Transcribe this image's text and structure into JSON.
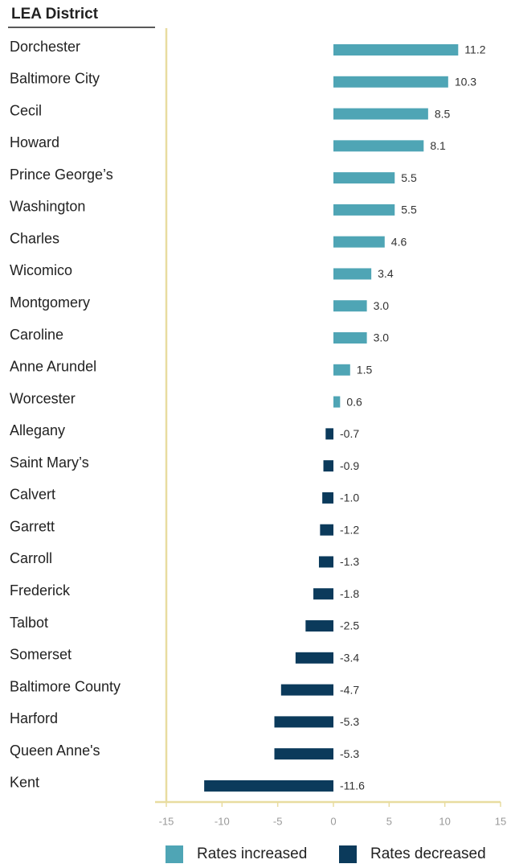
{
  "chart_data": {
    "type": "bar",
    "orientation": "horizontal",
    "title": "LEA District",
    "categories": [
      "Dorchester",
      "Baltimore City",
      "Cecil",
      "Howard",
      "Prince George’s",
      "Washington",
      "Charles",
      "Wicomico",
      "Montgomery",
      "Caroline",
      "Anne Arundel",
      "Worcester",
      "Allegany",
      "Saint Mary’s",
      "Calvert",
      "Garrett",
      "Carroll",
      "Frederick",
      "Talbot",
      "Somerset",
      "Baltimore County",
      "Harford",
      "Queen Anne's",
      "Kent"
    ],
    "values": [
      11.2,
      10.3,
      8.5,
      8.1,
      5.5,
      5.5,
      4.6,
      3.4,
      3,
      3,
      1.5,
      0.6,
      -0.7,
      -0.9,
      -1,
      -1.2,
      -1.3,
      -1.8,
      -2.5,
      -3.4,
      -4.7,
      -5.3,
      -5.3,
      -11.6
    ],
    "value_labels": [
      "11.2",
      "10.3",
      "8.5",
      "8.1",
      "5.5",
      "5.5",
      "4.6",
      "3.4",
      "3.0",
      "3.0",
      "1.5",
      "0.6",
      "-0.7",
      "-0.9",
      "-1.0",
      "-1.2",
      "-1.3",
      "-1.8",
      "-2.5",
      "-3.4",
      "-4.7",
      "-5.3",
      "-5.3",
      "-11.6"
    ],
    "legend": [
      {
        "name": "Rates increased",
        "color": "#4fa5b5"
      },
      {
        "name": "Rates decreased",
        "color": "#0b3a5b"
      }
    ],
    "xlim": [
      -15,
      15
    ],
    "xticks": [
      -15,
      -10,
      -5,
      0,
      5,
      10,
      15
    ]
  }
}
